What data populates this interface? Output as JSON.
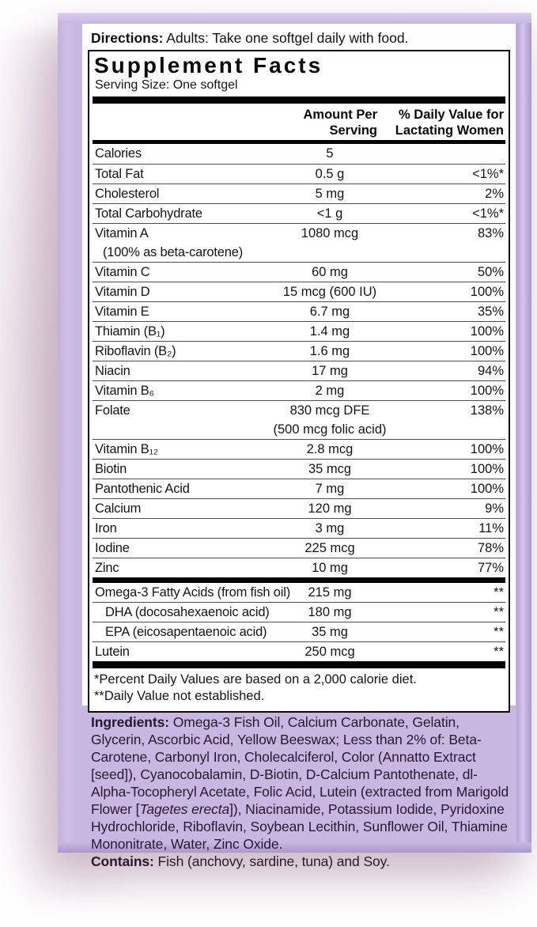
{
  "colors": {
    "package_lavender": "#c8b8e1",
    "package_edge": "#b19dd3",
    "label_white": "#fefefe",
    "table_text": "#141414",
    "ingredients_text": "#2a1731"
  },
  "directions": {
    "label": "Directions:",
    "text": " Adults: Take one softgel daily with food."
  },
  "supplement_facts": {
    "title": "Supplement Facts",
    "serving_size": "Serving Size: One softgel",
    "amount_header_lines": [
      "Amount Per",
      "Serving"
    ],
    "dv_header_lines": [
      "% Daily Value for",
      "Lactating Women"
    ],
    "rows": [
      {
        "label": "Calories",
        "amount": "5",
        "dv": ""
      },
      {
        "label": "Total Fat",
        "amount": "0.5 g",
        "dv": "<1%*"
      },
      {
        "label": "Cholesterol",
        "amount": "5 mg",
        "dv": "2%"
      },
      {
        "label": "Total Carbohydrate",
        "amount": "<1 g",
        "dv": "<1%*"
      },
      {
        "label": "Vitamin A",
        "label_sub": "(100% as beta-carotene)",
        "amount": "1080 mcg",
        "dv": "83%"
      },
      {
        "label": "Vitamin C",
        "amount": "60 mg",
        "dv": "50%"
      },
      {
        "label": "Vitamin D",
        "amount": "15 mcg (600 IU)",
        "dv": "100%"
      },
      {
        "label": "Vitamin E",
        "amount": "6.7 mg",
        "dv": "35%"
      },
      {
        "label": "Thiamin (B₁)",
        "amount": "1.4 mg",
        "dv": "100%"
      },
      {
        "label": "Riboflavin (B₂)",
        "amount": "1.6 mg",
        "dv": "100%"
      },
      {
        "label": "Niacin",
        "amount": "17 mg",
        "dv": "94%"
      },
      {
        "label": "Vitamin B₆",
        "amount": "2 mg",
        "dv": "100%"
      },
      {
        "label": "Folate",
        "amount": "830 mcg DFE",
        "amount_sub": "(500 mcg folic acid)",
        "dv": "138%"
      },
      {
        "label": "Vitamin B₁₂",
        "amount": "2.8 mcg",
        "dv": "100%"
      },
      {
        "label": "Biotin",
        "amount": "35 mcg",
        "dv": "100%"
      },
      {
        "label": "Pantothenic Acid",
        "amount": "7 mg",
        "dv": "100%"
      },
      {
        "label": "Calcium",
        "amount": "120 mg",
        "dv": "9%"
      },
      {
        "label": "Iron",
        "amount": "3 mg",
        "dv": "11%"
      },
      {
        "label": "Iodine",
        "amount": "225 mcg",
        "dv": "78%"
      },
      {
        "label": "Zinc",
        "amount": "10 mg",
        "dv": "77%"
      },
      {
        "label": "Omega-3 Fatty Acids (from fish oil)",
        "amount": "215 mg",
        "dv": "**",
        "thick_top": true
      },
      {
        "label": "DHA (docosahexaenoic acid)",
        "amount": "180 mg",
        "dv": "**",
        "indent": true
      },
      {
        "label": "EPA (eicosapentaenoic acid)",
        "amount": "35 mg",
        "dv": "**",
        "indent": true
      },
      {
        "label": "Lutein",
        "amount": "250 mcg",
        "dv": "**"
      }
    ],
    "footnote1": "*Percent Daily Values are based on a 2,000 calorie diet.",
    "footnote2": "**Daily Value not established."
  },
  "ingredients": {
    "label": "Ingredients:",
    "part1": " Omega-3 Fish Oil, Calcium Carbonate, Gelatin, Glycerin, Ascorbic Acid, Yellow Beeswax; Less than 2% of: Beta-Carotene, Carbonyl Iron, Cholecalciferol, Color (Annatto Extract [seed]), Cyanocobalamin, D-Biotin, D-Calcium Pantothenate, dl-Alpha-Tocopheryl Acetate, Folic Acid, Lutein (extracted from Marigold Flower [",
    "italic_species": "Tagetes erecta",
    "part2": "]), Niacinamide, Potassium Iodide, Pyridoxine Hydrochloride, Riboflavin, Soybean Lecithin, Sunflower Oil, Thiamine Mononitrate, Water, Zinc Oxide."
  },
  "contains": {
    "label": "Contains:",
    "text": " Fish (anchovy, sardine, tuna) and Soy."
  }
}
